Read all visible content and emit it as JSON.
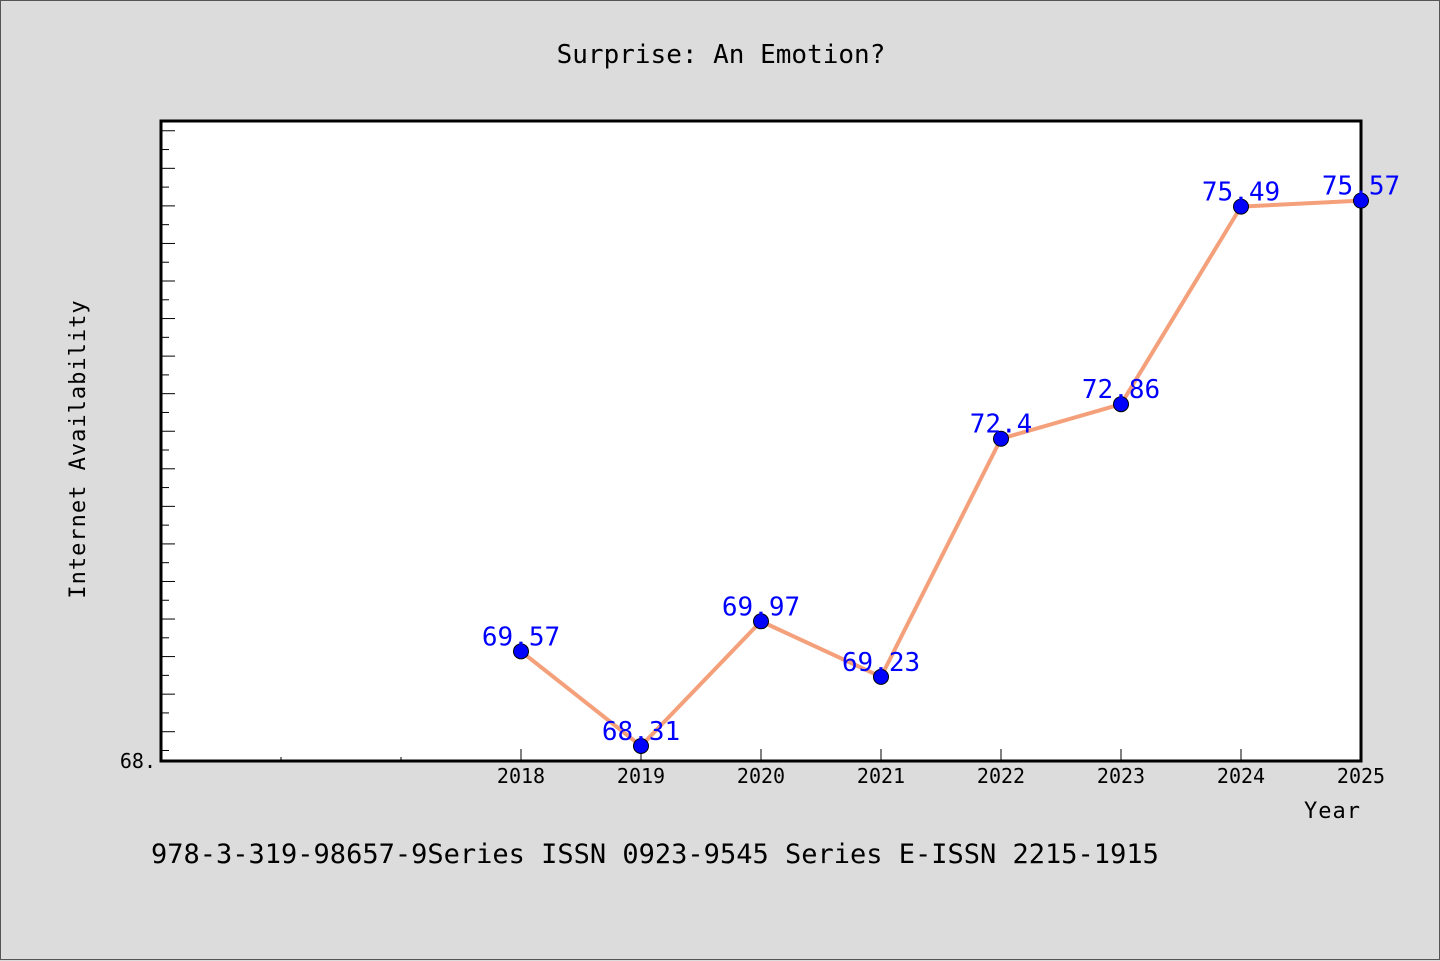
{
  "chart_data": {
    "type": "line",
    "title": "Surprise: An Emotion?",
    "xlabel": "Year",
    "ylabel": "Internet Availability",
    "x": [
      "2018",
      "2019",
      "2020",
      "2021",
      "2022",
      "2023",
      "2024",
      "2025"
    ],
    "series": [
      {
        "values": [
          69.57,
          68.31,
          69.97,
          69.23,
          72.4,
          72.86,
          75.49,
          75.57
        ],
        "labels": [
          "69.57",
          "68.31",
          "69.97",
          "69.23",
          "72.4",
          "72.86",
          "75.49",
          "75.57"
        ]
      }
    ],
    "ytick_labels": [
      "68."
    ],
    "ylim": [
      68.11,
      76.63
    ],
    "line_color": "#f4a07a",
    "marker_color": "#0000ff",
    "label_color": "#0000ff",
    "grid": false,
    "background_color": "#dcdcdc",
    "plot_background_color": "#ffffff"
  },
  "footer": {
    "text": "978-3-319-98657-9Series ISSN 0923-9545 Series E-ISSN 2215-1915"
  }
}
